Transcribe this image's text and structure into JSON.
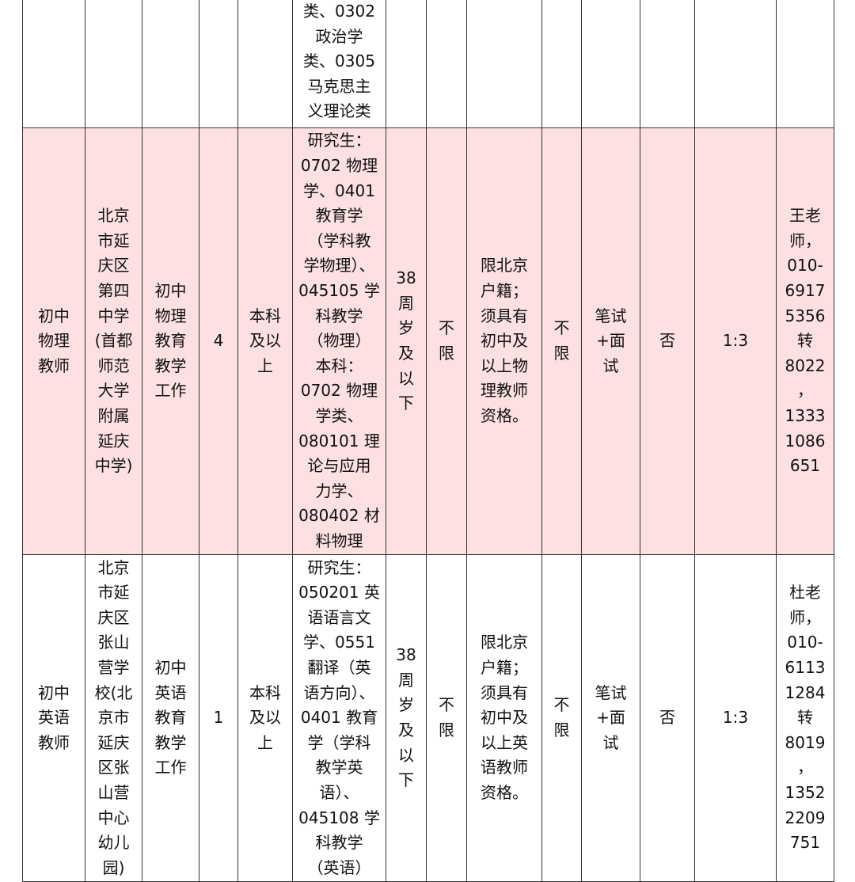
{
  "rows": [
    {
      "cells": [
        "",
        "",
        "",
        "",
        "",
        "类、0302\n政治学\n类、0305\n马克思主\n义理论类",
        "",
        "",
        "",
        "",
        "",
        "",
        "",
        ""
      ]
    },
    {
      "highlight": "#fde0e1",
      "cells": [
        "初中\n物理\n教师",
        "北京\n市延\n庆区\n第四\n中学\n(首都\n师范\n大学\n附属\n延庆\n中学)",
        "初中\n物理\n教育\n教学\n工作",
        "4",
        "本科\n及以\n上",
        "研究生：\n0702 物理\n学、0401\n教育学\n（学科教\n学物理）、\n045105 学\n科教学\n（物理）\n本科：\n0702 物理\n学类、\n080101 理\n论与应用\n力学、\n080402 材\n料物理",
        "38\n周\n岁\n及\n以\n下",
        "不\n限",
        "限北京\n户籍；\n须具有\n初中及\n以上物\n理教师\n资格。",
        "不\n限",
        "笔试\n+面\n试",
        "否",
        "1:3",
        "王老\n师，\n010-\n6917\n5356\n转\n8022\n，\n1333\n1086\n651"
      ]
    },
    {
      "cells": [
        "初中\n英语\n教师",
        "北京\n市延\n庆区\n张山\n营学\n校(北\n京市\n延庆\n区张\n山营\n中心\n幼儿\n园)",
        "初中\n英语\n教育\n教学\n工作",
        "1",
        "本科\n及以\n上",
        "研究生：\n050201 英\n语语言文\n学、0551\n翻译（英\n语方向）、\n0401 教育\n学（学科\n教学英\n语）、\n045108 学\n科教学\n（英语）",
        "38\n周\n岁\n及\n以\n下",
        "不\n限",
        "限北京\n户籍；\n须具有\n初中及\n以上英\n语教师\n资格。",
        "不\n限",
        "笔试\n+面\n试",
        "否",
        "1:3",
        "杜老\n师，\n010-\n6113\n1284\n转\n8019\n，\n1352\n2209\n751"
      ]
    }
  ]
}
